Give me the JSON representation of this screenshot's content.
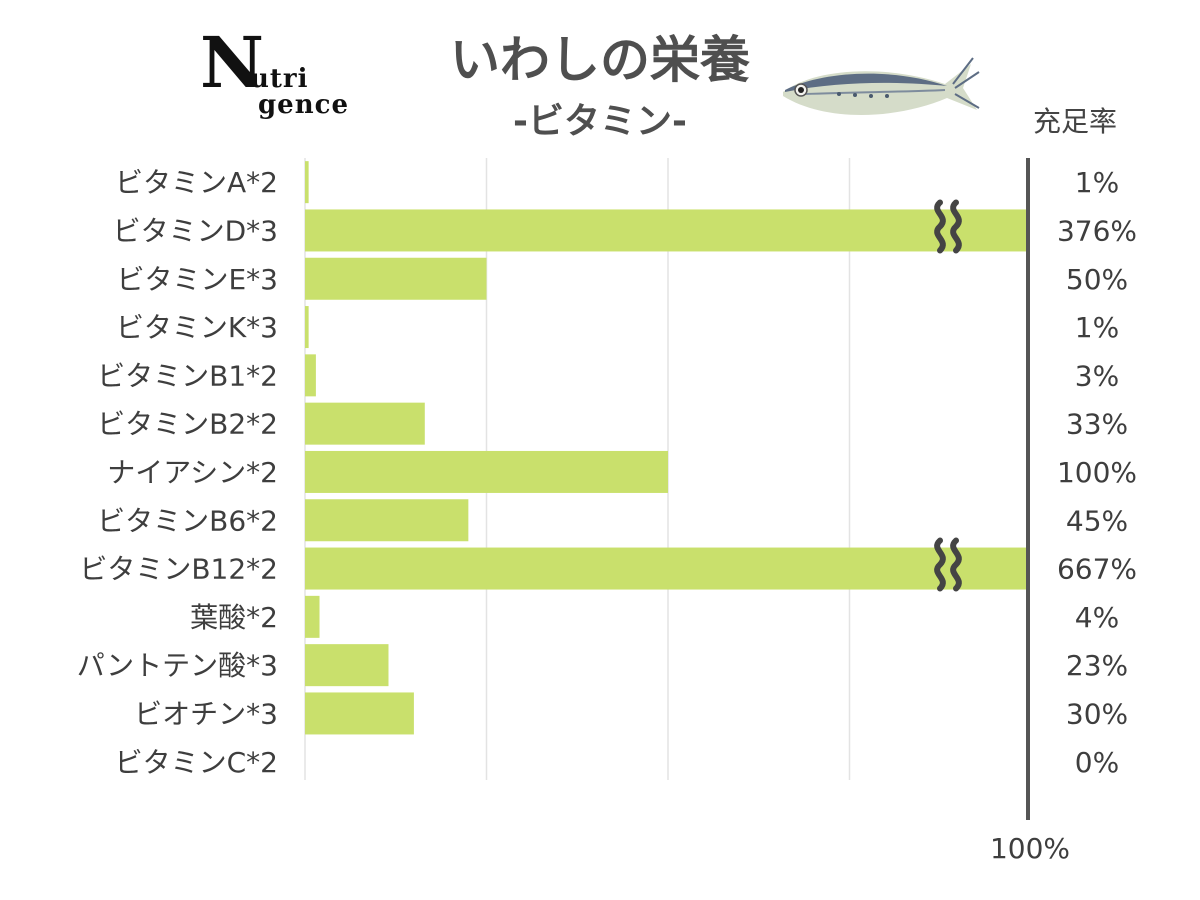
{
  "logo": {
    "big": "N",
    "line1": "utri",
    "line2": "gence"
  },
  "title": "いわしの栄養",
  "subtitle": "-ビタミン-",
  "rate_header": "充足率",
  "chart_data": {
    "type": "bar",
    "orientation": "horizontal",
    "title": "いわしの栄養",
    "subtitle": "-ビタミン-",
    "categories": [
      "ビタミンA*2",
      "ビタミンD*3",
      "ビタミンE*3",
      "ビタミンK*3",
      "ビタミンB1*2",
      "ビタミンB2*2",
      "ナイアシン*2",
      "ビタミンB6*2",
      "ビタミンB12*2",
      "葉酸*2",
      "パントテン酸*3",
      "ビオチン*3",
      "ビタミンC*2"
    ],
    "values": [
      1,
      376,
      50,
      1,
      3,
      33,
      100,
      45,
      667,
      4,
      23,
      30,
      0
    ],
    "value_labels": [
      "1%",
      "376%",
      "50%",
      "1%",
      "3%",
      "33%",
      "100%",
      "45%",
      "667%",
      "4%",
      "23%",
      "30%",
      "0%"
    ],
    "truncated": [
      false,
      true,
      false,
      false,
      false,
      false,
      false,
      false,
      true,
      false,
      false,
      false,
      false
    ],
    "xlim": [
      0,
      200
    ],
    "reference_line_label": "100%",
    "grid": true,
    "bar_color": "#c9e06c",
    "ref_line_color": "#555555",
    "grid_color": "#e3e3e3"
  }
}
